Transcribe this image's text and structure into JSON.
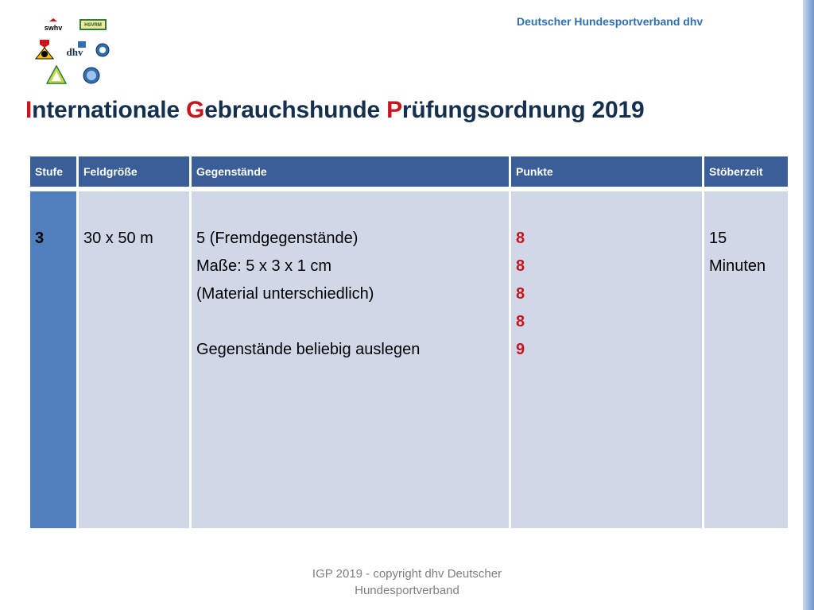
{
  "header": {
    "org": "Deutscher Hundesportverband dhv"
  },
  "logos": {
    "swhv": "swhv",
    "hsvrm": "HSVRM",
    "dhv": "dhv"
  },
  "title": {
    "w1_cap": "I",
    "w1_rest": "nternationale ",
    "w2_cap": "G",
    "w2_rest": "ebrauchshunde ",
    "w3_cap": "P",
    "w3_rest": "rüfungsordnung 2019"
  },
  "table": {
    "headers": [
      "Stufe",
      "Feldgröße",
      "Gegenstände",
      "Punkte",
      "Stöberzeit"
    ],
    "row": {
      "stufe": "3",
      "feldgroesse": "30 x 50 m",
      "gegenstaende": [
        "5 (Fremdgegenstände)",
        "Maße: 5 x 3 x 1 cm",
        "(Material unterschiedlich)",
        "",
        "Gegenstände beliebig auslegen"
      ],
      "punkte": [
        "8",
        "8",
        "8",
        "8",
        "9"
      ],
      "stoeberzeit": [
        "15",
        "Minuten"
      ]
    }
  },
  "footer": {
    "line1": "IGP 2019 -  copyright dhv Deutscher",
    "line2": "Hundesportverband"
  },
  "colors": {
    "accent_red": "#c8141d",
    "header_blue": "#3a5e98",
    "cell_bg": "#d0d8e8",
    "stufe_bg": "#4f7fbd"
  }
}
